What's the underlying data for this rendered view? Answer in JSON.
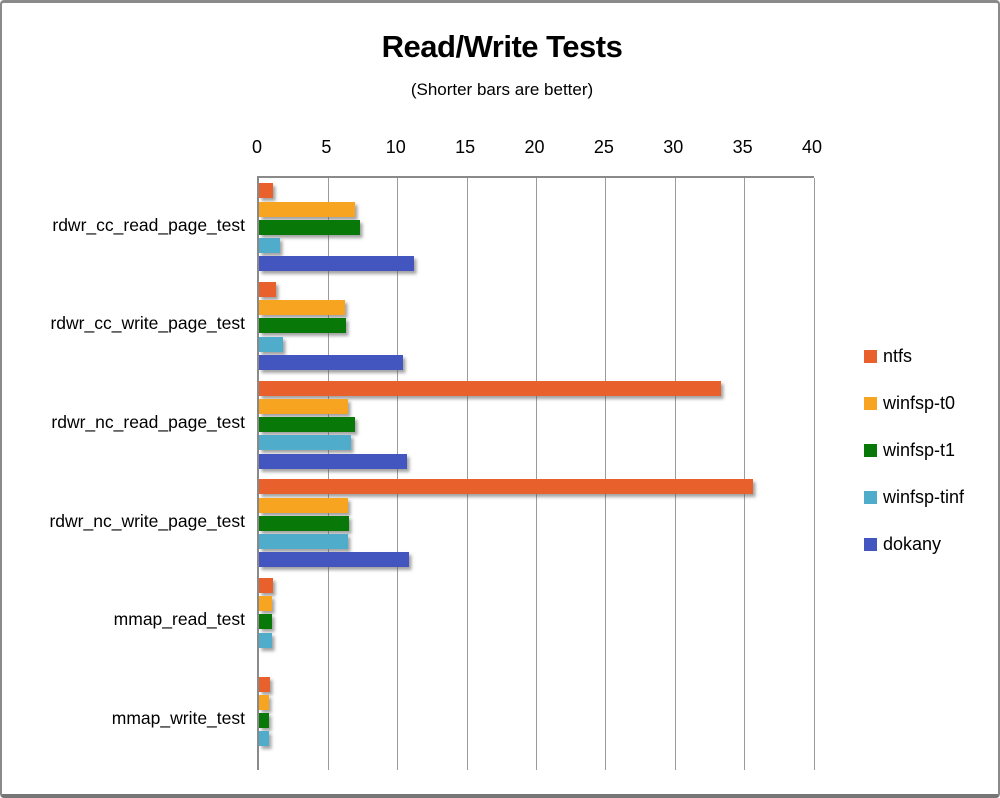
{
  "window_title": "Read/Write Tests chart",
  "chart_data": {
    "type": "bar",
    "orientation": "horizontal",
    "title": "Read/Write Tests",
    "subtitle": "(Shorter bars are better)",
    "xlabel": "",
    "ylabel": "",
    "xlim": [
      0,
      40
    ],
    "x_ticks": [
      0,
      5,
      10,
      15,
      20,
      25,
      30,
      35,
      40
    ],
    "grid": true,
    "legend_position": "right",
    "categories": [
      "rdwr_cc_read_page_test",
      "rdwr_cc_write_page_test",
      "rdwr_nc_read_page_test",
      "rdwr_nc_write_page_test",
      "mmap_read_test",
      "mmap_write_test"
    ],
    "series": [
      {
        "name": "ntfs",
        "color": "#E8612C",
        "values": [
          1.0,
          1.2,
          33.3,
          35.6,
          1.0,
          0.8
        ]
      },
      {
        "name": "winfsp-t0",
        "color": "#F7A421",
        "values": [
          6.9,
          6.2,
          6.4,
          6.4,
          0.95,
          0.75
        ]
      },
      {
        "name": "winfsp-t1",
        "color": "#087808",
        "values": [
          7.3,
          6.3,
          6.9,
          6.5,
          0.95,
          0.7
        ]
      },
      {
        "name": "winfsp-tinf",
        "color": "#4FACCB",
        "values": [
          1.5,
          1.7,
          6.6,
          6.4,
          0.95,
          0.75
        ]
      },
      {
        "name": "dokany",
        "color": "#4356C0",
        "values": [
          11.2,
          10.4,
          10.7,
          10.8,
          null,
          null
        ]
      }
    ],
    "colors": {
      "gridline": "#9b9b9b",
      "axis_border": "#8a8a8a"
    }
  }
}
